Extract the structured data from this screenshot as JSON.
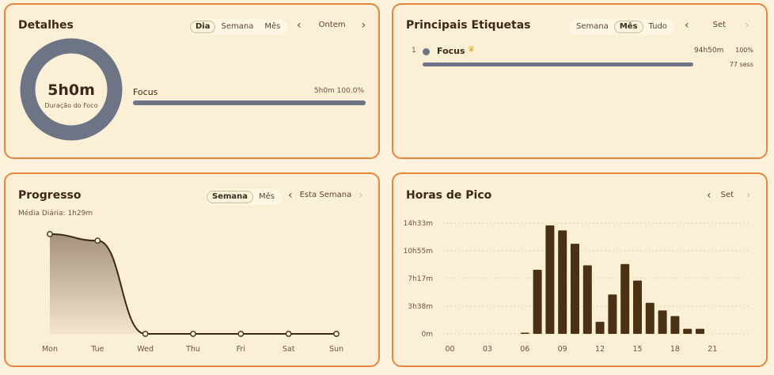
{
  "details": {
    "title": "Detalhes",
    "tabs": [
      "Dia",
      "Semana",
      "Mês"
    ],
    "active_tab": "Dia",
    "period": "Ontem",
    "donut_value": "5h0m",
    "donut_label": "Duração do Foco",
    "item_label": "Focus",
    "item_value": "5h0m 100.0%",
    "item_fraction": 1.0,
    "ring_color": "#6d7485"
  },
  "top_tags": {
    "title": "Principais Etiquetas",
    "tabs": [
      "Semana",
      "Mês",
      "Tudo"
    ],
    "active_tab": "Mês",
    "period": "Set",
    "rank": "1",
    "tag_name": "Focus",
    "tag_time": "94h50m",
    "tag_percent": "100%",
    "tag_sessions": "77 sess",
    "tag_fraction": 1.0,
    "dot_color": "#6d7485"
  },
  "progress": {
    "title": "Progresso",
    "tabs": [
      "Semana",
      "Mês"
    ],
    "active_tab": "Semana",
    "period": "Esta Semana",
    "daily_avg": "Média Diária: 1h29m"
  },
  "peak_hours": {
    "title": "Horas de Pico",
    "period": "Set"
  },
  "chart_data": [
    {
      "type": "area",
      "title": "Progresso",
      "categories": [
        "Mon",
        "Tue",
        "Wed",
        "Thu",
        "Fri",
        "Sat",
        "Sun"
      ],
      "values": [
        5.35,
        5.0,
        0,
        0,
        0,
        0,
        0
      ],
      "ylim": [
        0,
        5.6
      ],
      "grid": false
    },
    {
      "type": "bar",
      "title": "Horas de Pico",
      "x": [
        0,
        1,
        2,
        3,
        4,
        5,
        6,
        7,
        8,
        9,
        10,
        11,
        12,
        13,
        14,
        15,
        16,
        17,
        18,
        19,
        20,
        21
      ],
      "xtick_labels": [
        "00",
        "03",
        "06",
        "09",
        "12",
        "15",
        "18",
        "21"
      ],
      "xtick_positions": [
        0,
        3,
        6,
        9,
        12,
        15,
        18,
        21
      ],
      "ytick_labels": [
        "0m",
        "3h38m",
        "7h17m",
        "10h55m",
        "14h33m"
      ],
      "ytick_values_min": [
        0,
        218,
        437,
        655,
        873
      ],
      "values_min": [
        0,
        0,
        0,
        0,
        0,
        0,
        2,
        505,
        855,
        815,
        710,
        540,
        95,
        310,
        550,
        420,
        245,
        185,
        140,
        40,
        40,
        0
      ],
      "ylim_min": [
        0,
        873
      ],
      "grid": true
    }
  ]
}
